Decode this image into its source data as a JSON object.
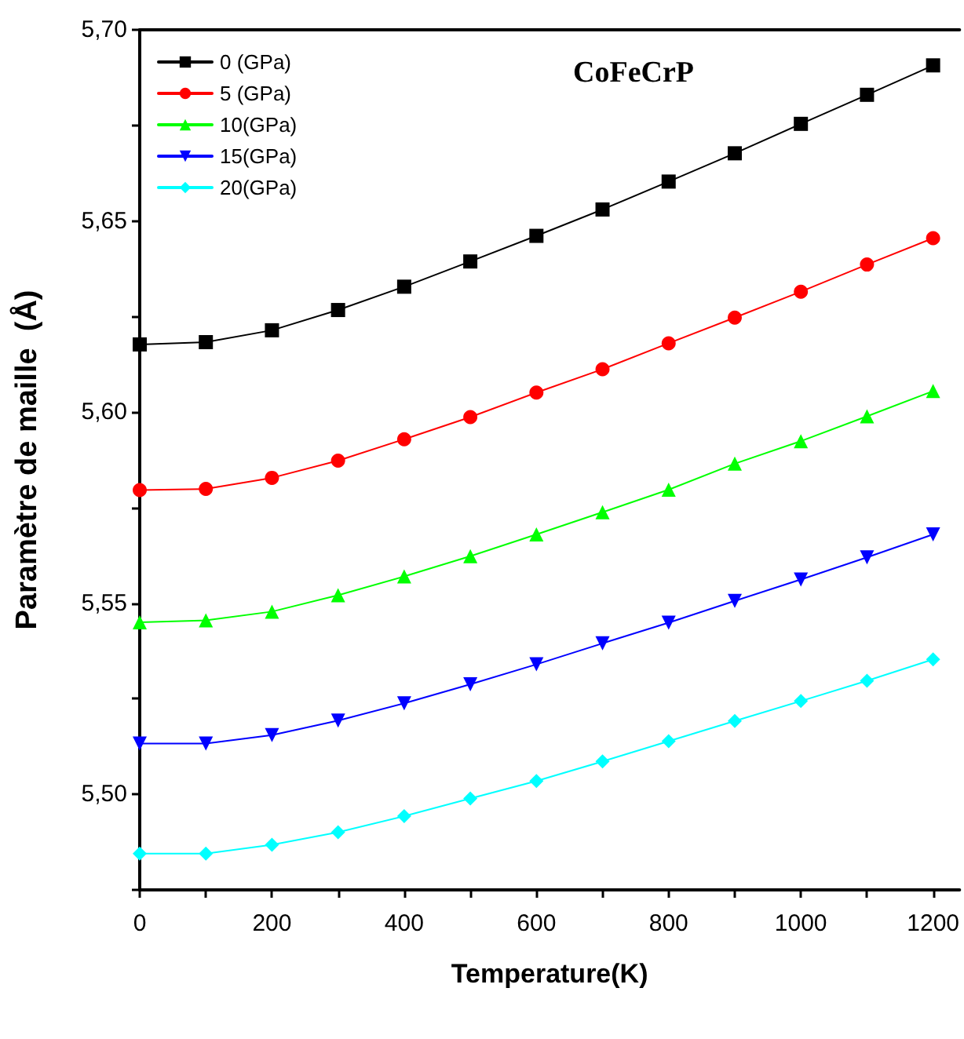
{
  "chart_data": {
    "type": "line",
    "title": "CoFeCrP",
    "xlabel": "Temperature(K)",
    "ylabel": "Paramètre de maille  (Å)",
    "x": [
      0,
      100,
      200,
      300,
      400,
      500,
      600,
      700,
      800,
      900,
      1000,
      1100,
      1200
    ],
    "series": [
      {
        "name": "0 (GPa)",
        "color": "#000000",
        "marker": "square",
        "values": [
          5.6177,
          5.6183,
          5.6214,
          5.6267,
          5.6328,
          5.6394,
          5.6461,
          5.653,
          5.6603,
          5.6677,
          5.6754,
          5.683,
          5.6907
        ]
      },
      {
        "name": "5 (GPa)",
        "color": "#ff0000",
        "marker": "circle",
        "values": [
          5.5796,
          5.5799,
          5.5828,
          5.5873,
          5.5929,
          5.5987,
          5.6051,
          5.6112,
          5.618,
          5.6247,
          5.6315,
          5.6386,
          5.6455
        ]
      },
      {
        "name": "10(GPa)",
        "color": "#00ff00",
        "marker": "triangle",
        "values": [
          5.545,
          5.5455,
          5.5478,
          5.5521,
          5.557,
          5.5623,
          5.568,
          5.5738,
          5.5797,
          5.5865,
          5.5924,
          5.5989,
          5.6055
        ]
      },
      {
        "name": "15(GPa)",
        "color": "#0000ff",
        "marker": "triangle-down",
        "values": [
          5.5133,
          5.5133,
          5.5155,
          5.5193,
          5.5238,
          5.5288,
          5.534,
          5.5395,
          5.5449,
          5.5506,
          5.5562,
          5.562,
          5.568
        ]
      },
      {
        "name": "20(GPa)",
        "color": "#00ffff",
        "marker": "diamond",
        "values": [
          5.4845,
          5.4845,
          5.4868,
          5.4901,
          5.4943,
          5.4989,
          5.5035,
          5.5086,
          5.5139,
          5.5192,
          5.5244,
          5.5297,
          5.5353
        ]
      }
    ],
    "xlim": [
      0,
      1240
    ],
    "xticks": [
      0,
      {
        "value": 100,
        "label": null
      },
      200,
      {
        "value": 300,
        "label": null
      },
      400,
      {
        "value": 500,
        "label": null
      },
      600,
      {
        "value": 700,
        "label": null
      },
      800,
      {
        "value": 900,
        "label": null
      },
      1000,
      {
        "value": 1100,
        "label": null
      },
      1200
    ],
    "ylim": [
      5.475,
      5.7
    ],
    "yticks": [
      {
        "value": 5.475,
        "label": null
      },
      {
        "value": 5.5,
        "label": "5,50"
      },
      {
        "value": 5.525,
        "label": null
      },
      {
        "value": 5.55,
        "label": "5,55"
      },
      {
        "value": 5.575,
        "label": null
      },
      {
        "value": 5.6,
        "label": "5,60"
      },
      {
        "value": 5.625,
        "label": null
      },
      {
        "value": 5.65,
        "label": "5,65"
      },
      {
        "value": 5.675,
        "label": null
      },
      {
        "value": 5.7,
        "label": "5,70"
      }
    ],
    "grid": false,
    "legend": "top left",
    "line_style": "solid"
  }
}
